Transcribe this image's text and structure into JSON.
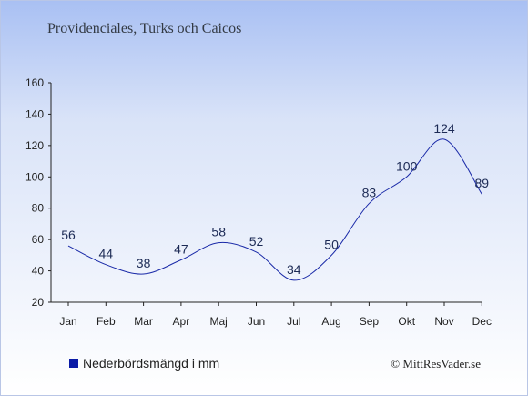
{
  "chart_data": {
    "type": "line",
    "title": "Providenciales, Turks och Caicos",
    "categories": [
      "Jan",
      "Feb",
      "Mar",
      "Apr",
      "Maj",
      "Jun",
      "Jul",
      "Aug",
      "Sep",
      "Okt",
      "Nov",
      "Dec"
    ],
    "series": [
      {
        "name": "Nederbördsmängd i mm",
        "values": [
          56,
          44,
          38,
          47,
          58,
          52,
          34,
          50,
          83,
          100,
          124,
          89
        ],
        "color": "#1a2aa8"
      }
    ],
    "ylim": [
      20,
      160
    ],
    "yticks": [
      20,
      40,
      60,
      80,
      100,
      120,
      140,
      160
    ],
    "xlabel": "",
    "ylabel": "",
    "grid": false,
    "legend": "bottom-left"
  },
  "footer": {
    "credit": "© MittResVader.se"
  }
}
